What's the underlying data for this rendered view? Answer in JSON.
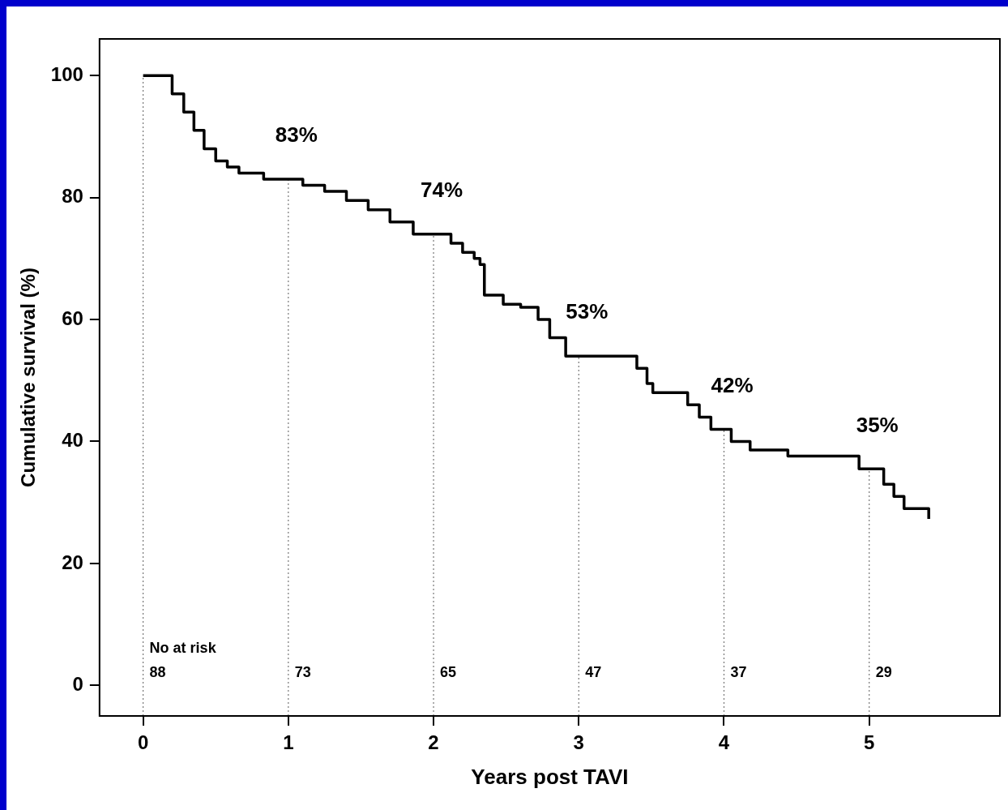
{
  "chart_data": {
    "type": "step",
    "xlabel": "Years post TAVI",
    "ylabel": "Cumulative survival (%)",
    "xlim": [
      -0.3,
      5.9
    ],
    "xticks": [
      0,
      1,
      2,
      3,
      4,
      5
    ],
    "ylim": [
      -5,
      106
    ],
    "yticks": [
      0,
      20,
      40,
      60,
      80,
      100
    ],
    "grid": false,
    "legend": false,
    "series": [
      {
        "color": "#000000",
        "x": [
          0,
          0.13,
          0.2,
          0.28,
          0.35,
          0.42,
          0.5,
          0.58,
          0.66,
          0.83,
          1.04,
          1.1,
          1.25,
          1.4,
          1.55,
          1.7,
          1.86,
          2.05,
          2.12,
          2.2,
          2.28,
          2.32,
          2.35,
          2.48,
          2.6,
          2.72,
          2.8,
          2.91,
          3.33,
          3.4,
          3.47,
          3.51,
          3.68,
          3.75,
          3.83,
          3.91,
          4.05,
          4.18,
          4.42,
          4.44,
          4.88,
          4.93,
          5.05,
          5.1,
          5.17,
          5.24,
          5.41,
          5.41
        ],
        "values": [
          100,
          100,
          97,
          94,
          91,
          88,
          86,
          85,
          84,
          83,
          83,
          82,
          81,
          79.5,
          78,
          76,
          74,
          74,
          72.5,
          71,
          70,
          69,
          64,
          62.5,
          62,
          60,
          57,
          54,
          54,
          52,
          49.5,
          48,
          48,
          46,
          44,
          42,
          40,
          38.6,
          38.6,
          37.6,
          37.6,
          35.5,
          35.5,
          33,
          31,
          29,
          29,
          27.3
        ]
      }
    ],
    "ref_lines": [
      {
        "axis": "x",
        "value": 0,
        "line_style": "dotted"
      },
      {
        "axis": "x",
        "value": 1,
        "line_style": "dotted"
      },
      {
        "axis": "x",
        "value": 2,
        "line_style": "dotted"
      },
      {
        "axis": "x",
        "value": 3,
        "line_style": "dotted"
      },
      {
        "axis": "x",
        "value": 4,
        "line_style": "dotted"
      },
      {
        "axis": "x",
        "value": 5,
        "line_style": "dotted"
      }
    ],
    "annotations": [
      {
        "text": "83%",
        "x": 1,
        "y": 83
      },
      {
        "text": "74%",
        "x": 2,
        "y": 74
      },
      {
        "text": "53%",
        "x": 3,
        "y": 54
      },
      {
        "text": "42%",
        "x": 4,
        "y": 42
      },
      {
        "text": "35%",
        "x": 5,
        "y": 35.5
      },
      {
        "text": "No at risk",
        "x": 0,
        "y": 6
      },
      {
        "text": "88",
        "x": 0,
        "y": 2
      },
      {
        "text": "73",
        "x": 1,
        "y": 2
      },
      {
        "text": "65",
        "x": 2,
        "y": 2
      },
      {
        "text": "47",
        "x": 3,
        "y": 2
      },
      {
        "text": "37",
        "x": 4,
        "y": 2
      },
      {
        "text": "29",
        "x": 5,
        "y": 2
      }
    ]
  }
}
